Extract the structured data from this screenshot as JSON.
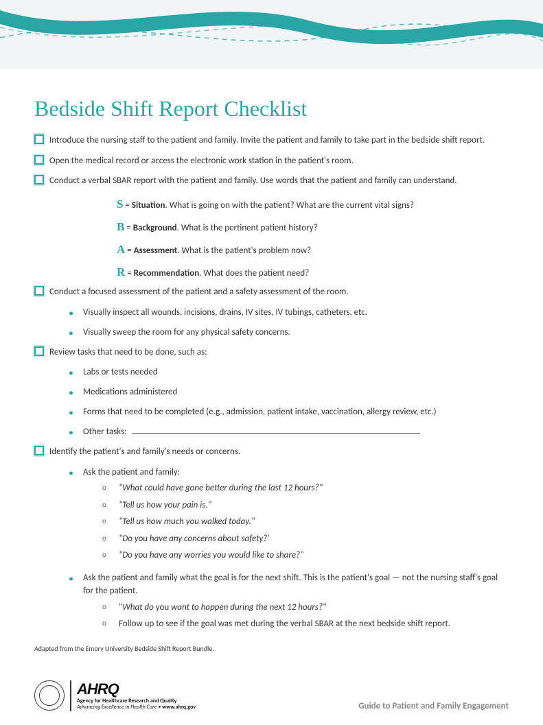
{
  "colors": {
    "teal": "#2aa6a6",
    "teal_dark": "#1d8f8f",
    "gray_header": "#eef2f2",
    "text": "#333333",
    "footer_gray": "#888888"
  },
  "title": "Bedside Shift Report Checklist",
  "checklist": [
    {
      "text": "Introduce the nursing staff to the patient and family. Invite the patient and family to take part in the bedside shift report."
    },
    {
      "text": "Open the medical record or access the electronic work station in the patient's room."
    },
    {
      "text": "Conduct a verbal SBAR report with the patient and family. Use words that the patient and family can understand."
    }
  ],
  "sbar": [
    {
      "letter": "S",
      "word": "Situation",
      "desc": ". What is going on with the patient? What are the current vital signs?"
    },
    {
      "letter": "B",
      "word": "Background",
      "desc": ".  What is the pertinent patient history?"
    },
    {
      "letter": "A",
      "word": "Assessment",
      "desc": ". What is the patient's problem now?"
    },
    {
      "letter": "R",
      "word": "Recommendation",
      "desc": ". What does the patient need?"
    }
  ],
  "check4": "Conduct a focused assessment of the patient and a safety assessment of the room.",
  "check4_bullets": [
    "Visually inspect all wounds, incisions, drains, IV sites, IV tubings, catheters, etc.",
    "Visually sweep the room for any physical safety concerns."
  ],
  "check5": "Review tasks that need to be done, such as:",
  "check5_bullets": [
    "Labs or tests needed",
    "Medications administered",
    "Forms that need to be completed (e.g., admission, patient intake, vaccination, allergy review, etc.)"
  ],
  "check5_other": "Other tasks:",
  "check6": "Identify the patient's and family's needs or concerns.",
  "check6_bullets": [
    {
      "text": "Ask the patient and family:",
      "subs": [
        "\"What could have gone better during the last 12 hours?\"",
        "\"Tell us how your pain is.\"",
        "\"Tell us how much you walked today.\"",
        "\"Do you have any concerns about safety?'",
        "\"Do you have any worries you would like to share?\""
      ],
      "subs_italic": true
    },
    {
      "text": "Ask the patient and family what the goal is for the next shift. This is the patient's goal — not the nursing staff's goal for the patient.",
      "subs": [
        {
          "html": "\"<span class='italic'>What do</span> you <span class='italic'>want to happen during the next 12 hours?\"</span>"
        },
        {
          "text": "Follow up to see if the goal was met during the verbal SBAR at the next bedside shift report."
        }
      ]
    }
  ],
  "adapted": "Adapted from the Emory University Bedside Shift Report Bundle.",
  "footer": {
    "ahrq_name": "AHRQ",
    "ahrq_full": "Agency for Healthcare Research and Quality",
    "ahrq_tag": "Advancing Excellence in Health Care",
    "ahrq_url": "www.ahrq.gov",
    "guide": "Guide to Patient and Family Engagement"
  }
}
